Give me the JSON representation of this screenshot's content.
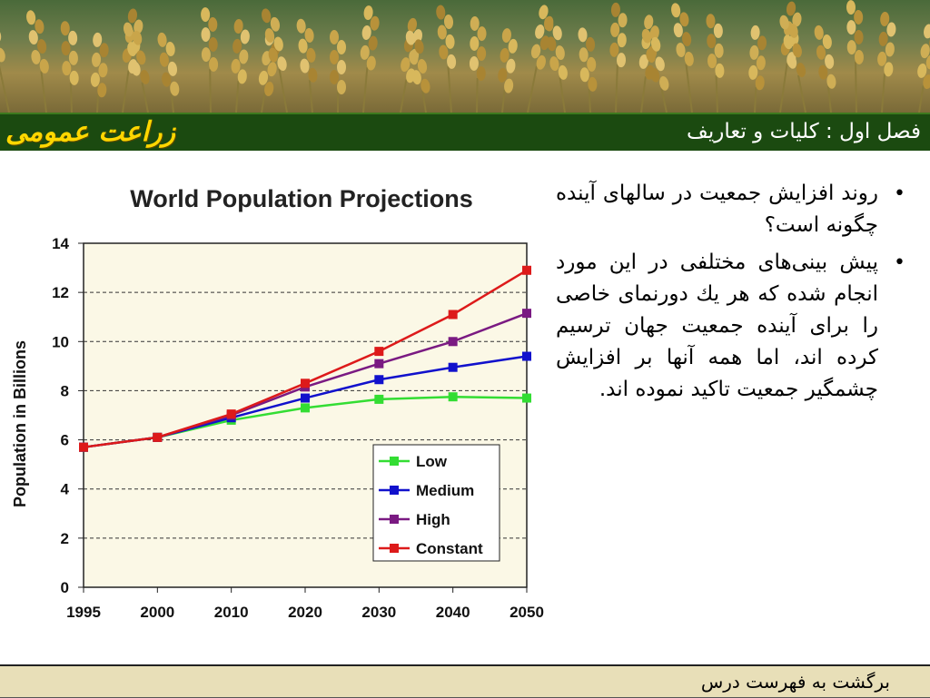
{
  "header": {
    "section_title": "فصل اول : كليات و تعاريف",
    "course_title": "زراعت عمومی"
  },
  "bullets": [
    "روند افزايش جمعيت در سالهای آينده چگونه است؟",
    "پيش بينی‌های مختلفی در اين مورد انجام شده كه هر يك دورنمای خاصی را برای آينده جمعيت جهان ترسيم كرده اند، اما همه آنها بر افزايش چشمگير جمعيت تاكيد نموده اند."
  ],
  "footer": {
    "back_link": "برگشت به فهرست درس"
  },
  "colors": {
    "low": "#33dd33",
    "medium": "#1111cc",
    "high": "#7a1a82",
    "constant": "#dd1a1a",
    "plot_bg": "#fbf8e6",
    "title_bar": "#1b4a10",
    "footer_bg": "#e8dfb8"
  },
  "chart_data": {
    "type": "line",
    "title": "World Population Projections",
    "xlabel": "",
    "ylabel": "Population in Billions",
    "categories": [
      "1995",
      "2000",
      "2010",
      "2020",
      "2030",
      "2040",
      "2050"
    ],
    "ylim": [
      0,
      14
    ],
    "yticks": [
      "0",
      "2",
      "4",
      "6",
      "8",
      "10",
      "12",
      "14"
    ],
    "grid": "horizontal dashed",
    "legend_position": "bottom-right",
    "series": [
      {
        "name": "Low",
        "color": "#33dd33",
        "marker": "square",
        "values": [
          5.7,
          6.1,
          6.8,
          7.3,
          7.65,
          7.75,
          7.7
        ]
      },
      {
        "name": "Medium",
        "color": "#1111cc",
        "marker": "square",
        "values": [
          5.7,
          6.1,
          6.9,
          7.7,
          8.45,
          8.95,
          9.4
        ]
      },
      {
        "name": "High",
        "color": "#7a1a82",
        "marker": "square",
        "values": [
          5.7,
          6.1,
          7.0,
          8.15,
          9.1,
          10.0,
          11.15
        ]
      },
      {
        "name": "Constant",
        "color": "#dd1a1a",
        "marker": "square",
        "values": [
          5.7,
          6.1,
          7.05,
          8.3,
          9.6,
          11.1,
          12.9
        ]
      }
    ]
  }
}
